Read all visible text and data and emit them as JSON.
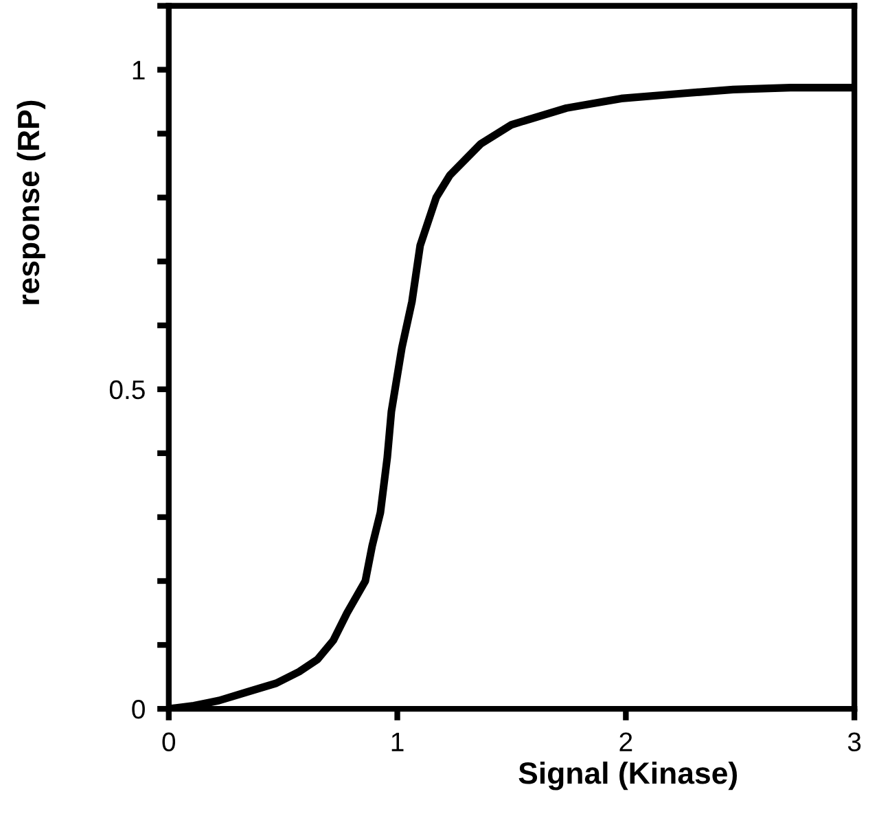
{
  "chart_data": {
    "type": "line",
    "xlabel": "Signal (Kinase)",
    "ylabel": "response (RP)",
    "xlim": [
      0,
      3
    ],
    "ylim": [
      0,
      1.1
    ],
    "xticks": [
      0,
      1,
      2,
      3
    ],
    "yticks": [
      0,
      {
        "value": 0.1,
        "label": null
      },
      {
        "value": 0.2,
        "label": null
      },
      {
        "value": 0.3,
        "label": null
      },
      {
        "value": 0.4,
        "label": null
      },
      0.5,
      {
        "value": 0.6,
        "label": null
      },
      {
        "value": 0.7,
        "label": null
      },
      {
        "value": 0.8,
        "label": null
      },
      {
        "value": 0.9,
        "label": null
      },
      1,
      {
        "value": 1.1,
        "label": null
      }
    ],
    "grid": false,
    "marker": "none",
    "line_style": "solid",
    "x": [
      0,
      0.11,
      0.22,
      0.34,
      0.47,
      0.57,
      0.65,
      0.72,
      0.78,
      0.86,
      0.89,
      0.926,
      0.956,
      0.974,
      1.02,
      1.064,
      1.1,
      1.17,
      1.23,
      1.365,
      1.5,
      1.74,
      1.98,
      2.25,
      2.47,
      2.72,
      3.0
    ],
    "series": [
      {
        "color": "#000000",
        "values": [
          0,
          0.005,
          0.013,
          0.026,
          0.04,
          0.058,
          0.077,
          0.107,
          0.15,
          0.2,
          0.255,
          0.307,
          0.393,
          0.465,
          0.565,
          0.637,
          0.725,
          0.8,
          0.835,
          0.884,
          0.914,
          0.94,
          0.955,
          0.963,
          0.969,
          0.972,
          0.972
        ]
      }
    ]
  }
}
